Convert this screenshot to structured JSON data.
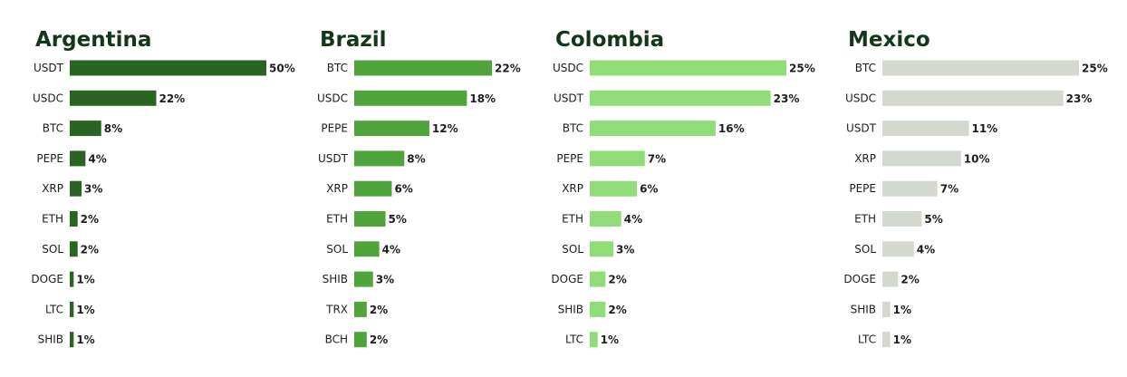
{
  "chart_data": [
    {
      "type": "bar",
      "orientation": "horizontal",
      "title": "Argentina",
      "color": "#2a6422",
      "categories": [
        "USDT",
        "USDC",
        "BTC",
        "PEPE",
        "XRP",
        "ETH",
        "SOL",
        "DOGE",
        "LTC",
        "SHIB"
      ],
      "values": [
        50,
        22,
        8,
        4,
        3,
        2,
        2,
        1,
        1,
        1
      ],
      "value_suffix": "%",
      "xlim": [
        0,
        50
      ],
      "grid": false
    },
    {
      "type": "bar",
      "orientation": "horizontal",
      "title": "Brazil",
      "color": "#50a43c",
      "categories": [
        "BTC",
        "USDC",
        "PEPE",
        "USDT",
        "XRP",
        "ETH",
        "SOL",
        "SHIB",
        "TRX",
        "BCH"
      ],
      "values": [
        22,
        18,
        12,
        8,
        6,
        5,
        4,
        3,
        2,
        2
      ],
      "value_suffix": "%",
      "xlim": [
        0,
        22
      ],
      "grid": false
    },
    {
      "type": "bar",
      "orientation": "horizontal",
      "title": "Colombia",
      "color": "#8fdc78",
      "categories": [
        "USDC",
        "USDT",
        "BTC",
        "PEPE",
        "XRP",
        "ETH",
        "SOL",
        "DOGE",
        "SHIB",
        "LTC"
      ],
      "values": [
        25,
        23,
        16,
        7,
        6,
        4,
        3,
        2,
        2,
        1
      ],
      "value_suffix": "%",
      "xlim": [
        0,
        25
      ],
      "grid": false
    },
    {
      "type": "bar",
      "orientation": "horizontal",
      "title": "Mexico",
      "color": "#d3d9cf",
      "categories": [
        "BTC",
        "USDC",
        "USDT",
        "XRP",
        "PEPE",
        "ETH",
        "SOL",
        "DOGE",
        "SHIB",
        "LTC"
      ],
      "values": [
        25,
        23,
        11,
        10,
        7,
        5,
        4,
        2,
        1,
        1
      ],
      "value_suffix": "%",
      "xlim": [
        0,
        25
      ],
      "grid": false
    }
  ]
}
